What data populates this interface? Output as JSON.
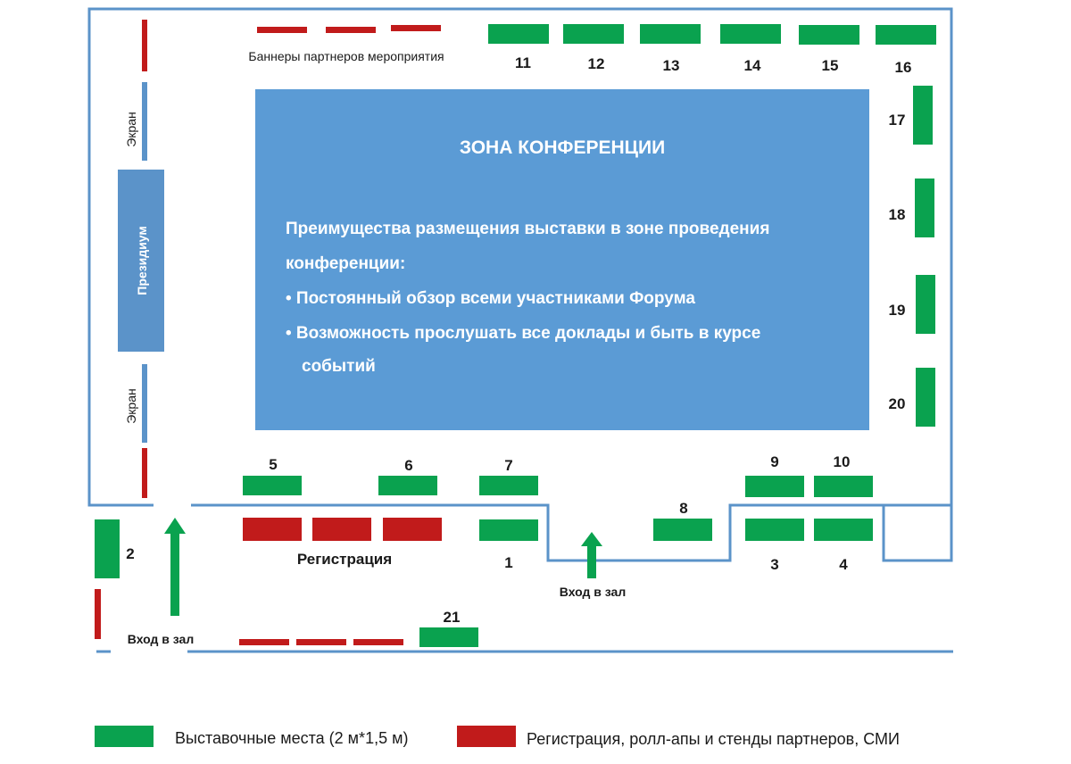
{
  "colors": {
    "stand": "#0aa24f",
    "partner": "#c11b1b",
    "wall": "#5b93c9",
    "conference_zone": "#5b9bd5"
  },
  "labels": {
    "banners": "Баннеры партнеров мероприятия",
    "screen": "Экран",
    "presidium": "Президиум",
    "registration": "Регистрация",
    "entrance": "Вход в зал"
  },
  "conference": {
    "title": "ЗОНА КОНФЕРЕНЦИИ",
    "line1": "Преимущества размещения выставки в зоне проведения",
    "line2": "конференции:",
    "bullet1": "• Постоянный обзор всеми участниками Форума",
    "bullet2": "• Возможность прослушать все доклады и быть в курсе",
    "bullet2_cont": "событий"
  },
  "stands": [
    "1",
    "2",
    "3",
    "4",
    "5",
    "6",
    "7",
    "8",
    "9",
    "10",
    "11",
    "12",
    "13",
    "14",
    "15",
    "16",
    "17",
    "18",
    "19",
    "20",
    "21"
  ],
  "legend": {
    "stand_label": "Выставочные места (2 м*1,5 м)",
    "partner_label": "Регистрация, ролл-апы и стенды партнеров, СМИ"
  }
}
